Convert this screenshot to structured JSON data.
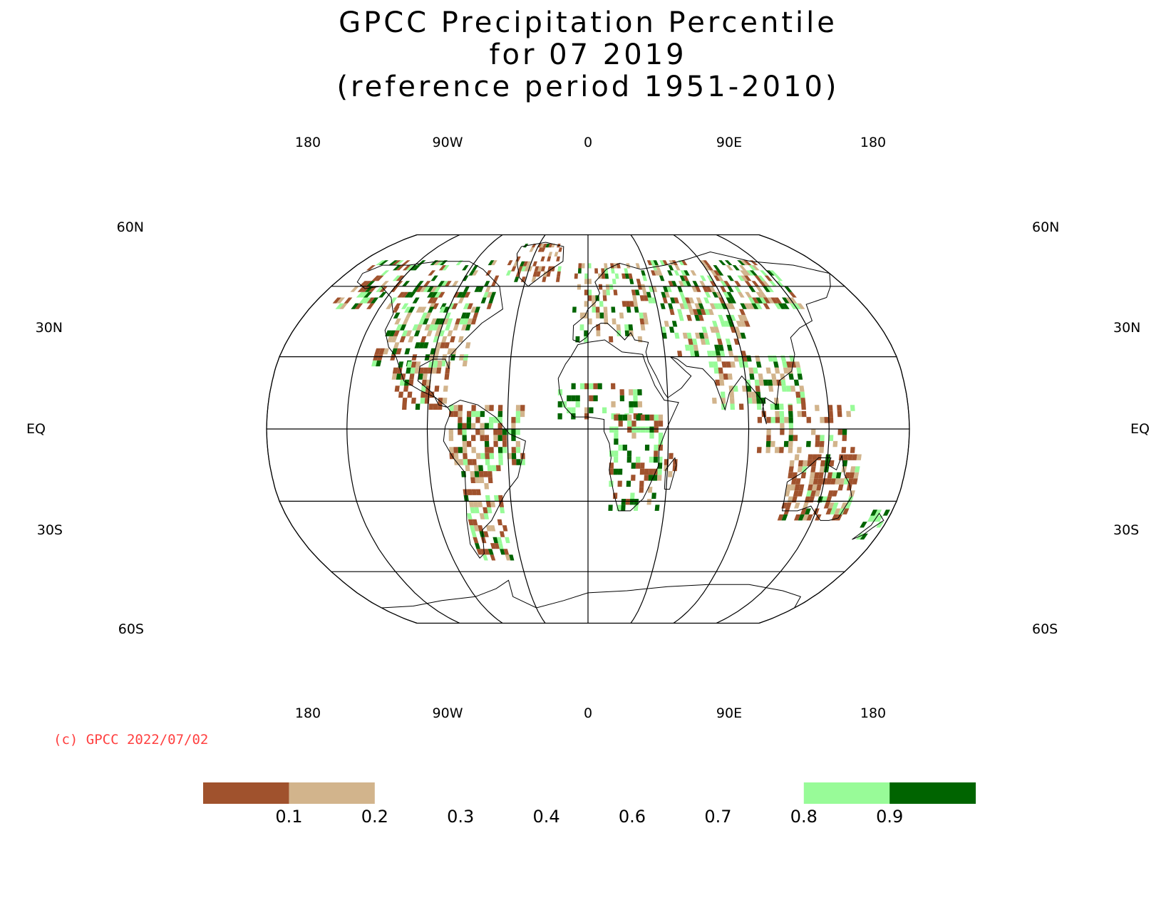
{
  "title": {
    "line1": "GPCC Precipitation Percentile",
    "line2": "for 07 2019",
    "line3": "(reference period 1951-2010)"
  },
  "map": {
    "projection": "Robinson",
    "center_lon": 0,
    "lon_labels_top": [
      "180",
      "90W",
      "0",
      "90E",
      "180"
    ],
    "lon_labels_bottom": [
      "180",
      "90W",
      "0",
      "90E",
      "180"
    ],
    "lat_labels": [
      "60N",
      "30N",
      "EQ",
      "30S",
      "60S"
    ],
    "grid_lats": [
      60,
      30,
      0,
      -30,
      -60
    ],
    "grid_lons": [
      -180,
      -135,
      -90,
      -45,
      0,
      45,
      90,
      135,
      180
    ],
    "colors": {
      "very_dry": "#a0522d",
      "dry": "#d2b48c",
      "wet": "#98fb98",
      "very_wet": "#006400"
    }
  },
  "credit": {
    "text": "(c) GPCC 2022/07/02",
    "color": "#ff4040"
  },
  "colorbar": {
    "labels": [
      "0.1",
      "0.2",
      "0.3",
      "0.4",
      "0.6",
      "0.7",
      "0.8",
      "0.9"
    ],
    "segments": [
      {
        "color": "#a0522d"
      },
      {
        "color": "#d2b48c"
      },
      {
        "color": "#ffffff"
      },
      {
        "color": "#ffffff"
      },
      {
        "color": "#ffffff"
      },
      {
        "color": "#ffffff"
      },
      {
        "color": "#ffffff"
      },
      {
        "color": "#98fb98"
      },
      {
        "color": "#006400"
      }
    ]
  }
}
